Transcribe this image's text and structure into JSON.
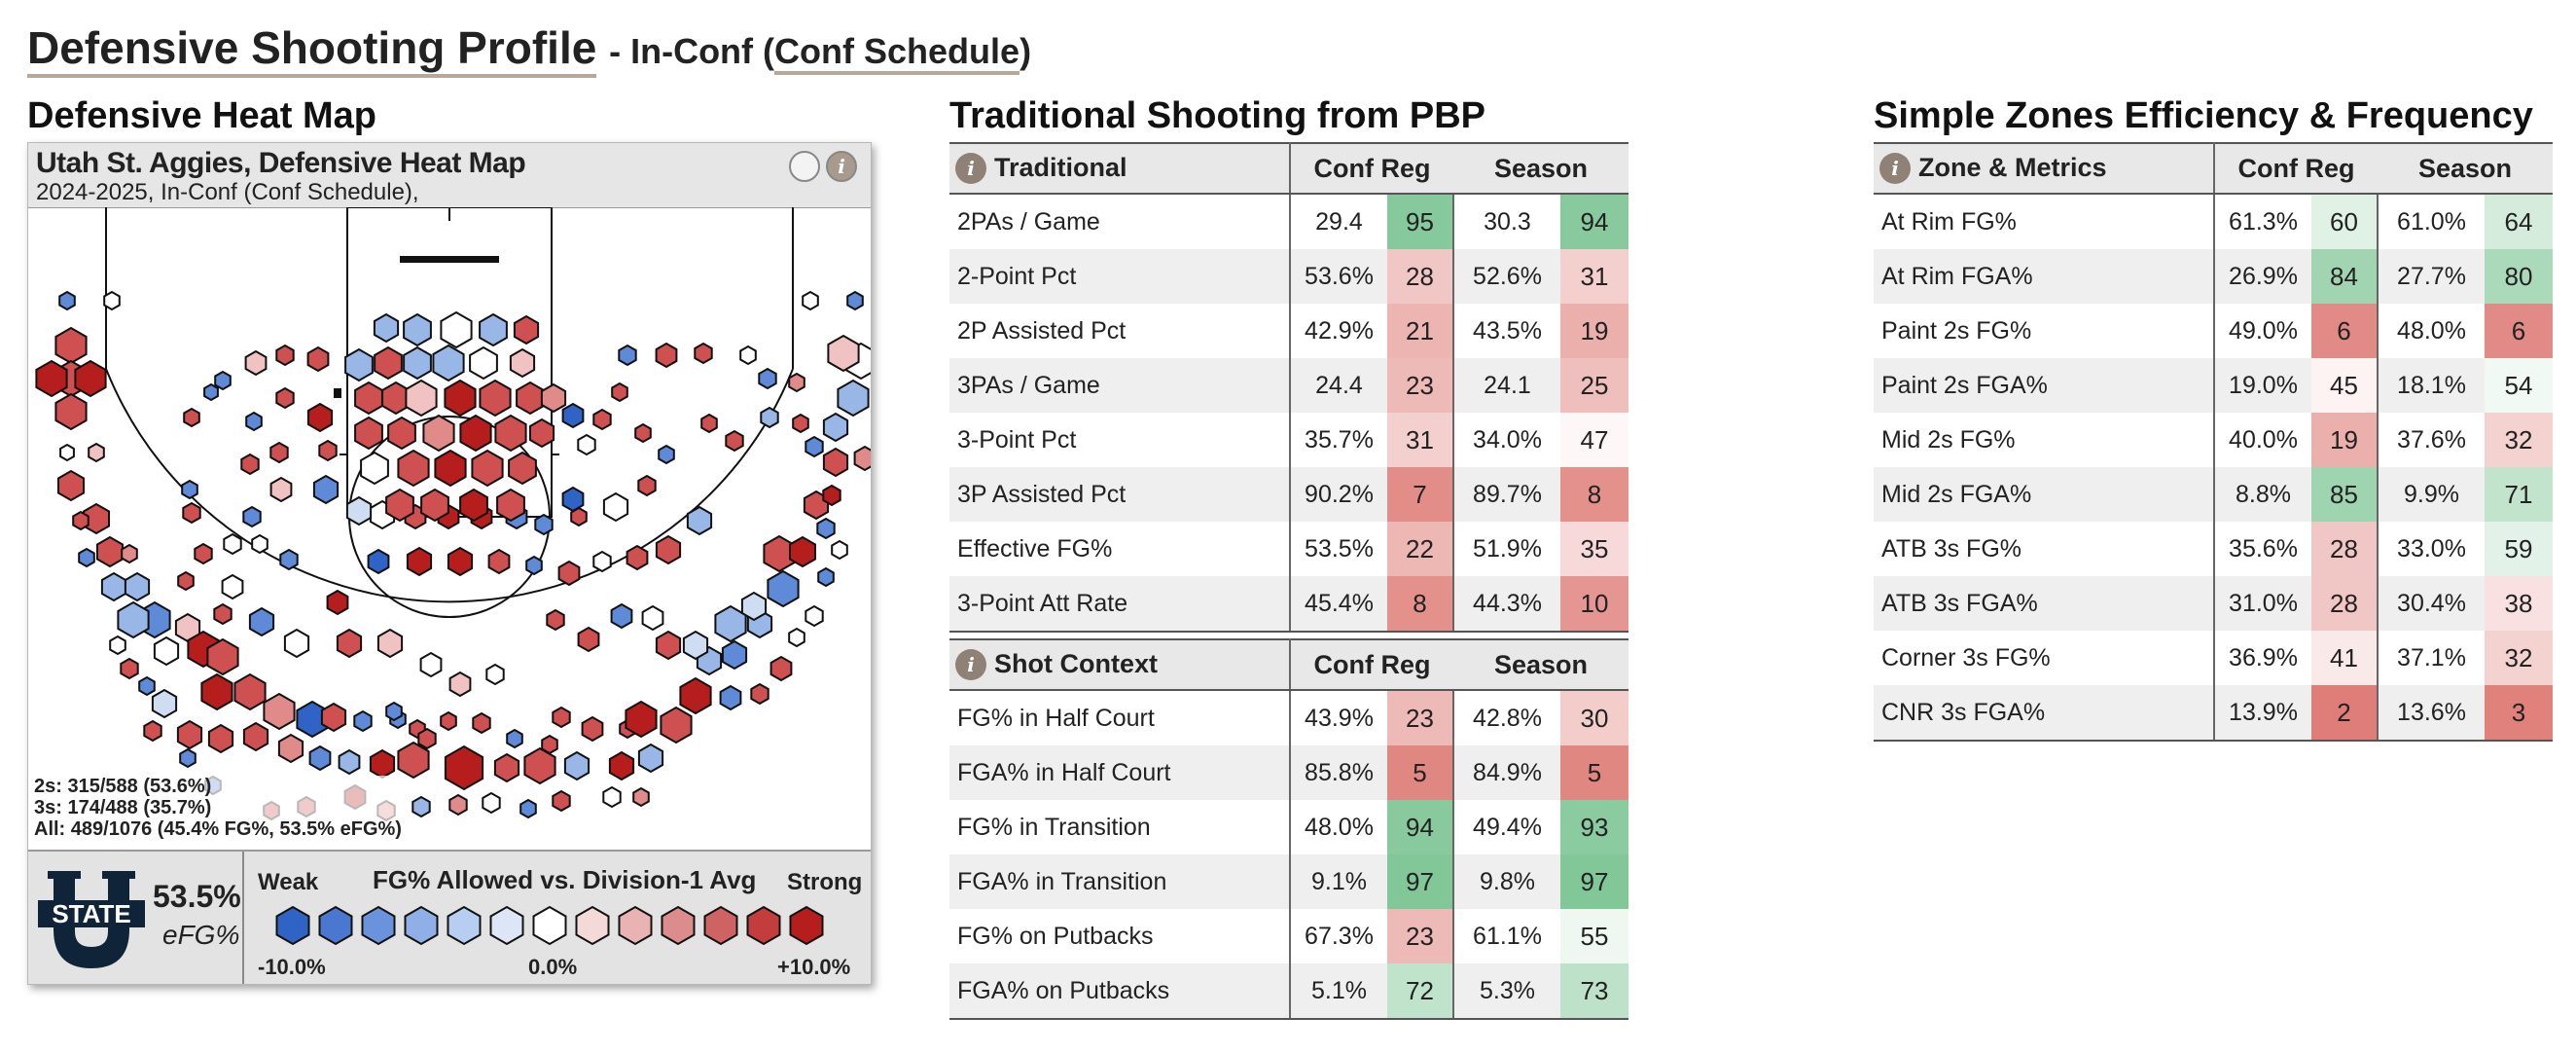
{
  "page": {
    "title": "Defensive Shooting Profile",
    "subtitle_prefix": "- In-Conf (",
    "subtitle_mid": "Conf Schedule",
    "subtitle_suffix": ")"
  },
  "heatmap": {
    "section_title": "Defensive Heat Map",
    "card_title": "Utah St. Aggies, Defensive Heat Map",
    "card_subtitle": "2024-2025, In-Conf (Conf Schedule),",
    "stats": {
      "twos": "2s: 315/588 (53.6%)",
      "threes": "3s: 174/488 (35.7%)",
      "all": "All: 489/1076 (45.4% FG%, 53.5% eFG%)"
    },
    "team_logo_text": "STATE",
    "team_logo_letter": "U",
    "efg_value": "53.5%",
    "efg_label": "eFG%",
    "legend_title": "FG% Allowed vs. Division-1 Avg",
    "legend_weak": "Weak",
    "legend_strong": "Strong",
    "legend_min": "-10.0%",
    "legend_mid": "0.0%",
    "legend_max": "+10.0%",
    "legend_colors": [
      "#2f64c6",
      "#4a78d0",
      "#6b92dc",
      "#8fb0e6",
      "#b7cdf1",
      "#dce6f7",
      "#ffffff",
      "#f4d9d9",
      "#eab3b3",
      "#dc8c8c",
      "#cf6262",
      "#c43d3d",
      "#b61e1e"
    ],
    "colors": {
      "strong_red": "#b61e1e",
      "strong_blue": "#2f64c6",
      "header_bg": "#e6e6e6"
    }
  },
  "traditional": {
    "section_title": "Traditional Shooting from PBP",
    "columns": [
      "Traditional",
      "Conf Reg",
      "Season"
    ],
    "rows": [
      {
        "label": "2PAs / Game",
        "cv": "29.4",
        "cr": 95,
        "sv": "30.3",
        "sr": 94
      },
      {
        "label": "2-Point Pct",
        "cv": "53.6%",
        "cr": 28,
        "sv": "52.6%",
        "sr": 31
      },
      {
        "label": "2P Assisted Pct",
        "cv": "42.9%",
        "cr": 21,
        "sv": "43.5%",
        "sr": 19
      },
      {
        "label": "3PAs / Game",
        "cv": "24.4",
        "cr": 23,
        "sv": "24.1",
        "sr": 25
      },
      {
        "label": "3-Point Pct",
        "cv": "35.7%",
        "cr": 31,
        "sv": "34.0%",
        "sr": 47
      },
      {
        "label": "3P Assisted Pct",
        "cv": "90.2%",
        "cr": 7,
        "sv": "89.7%",
        "sr": 8
      },
      {
        "label": "Effective FG%",
        "cv": "53.5%",
        "cr": 22,
        "sv": "51.9%",
        "sr": 35
      },
      {
        "label": "3-Point Att Rate",
        "cv": "45.4%",
        "cr": 8,
        "sv": "44.3%",
        "sr": 10
      }
    ]
  },
  "context": {
    "columns": [
      "Shot Context",
      "Conf Reg",
      "Season"
    ],
    "rows": [
      {
        "label": "FG% in Half Court",
        "cv": "43.9%",
        "cr": 23,
        "sv": "42.8%",
        "sr": 30
      },
      {
        "label": "FGA% in Half Court",
        "cv": "85.8%",
        "cr": 5,
        "sv": "84.9%",
        "sr": 5
      },
      {
        "label": "FG% in Transition",
        "cv": "48.0%",
        "cr": 94,
        "sv": "49.4%",
        "sr": 93
      },
      {
        "label": "FGA% in Transition",
        "cv": "9.1%",
        "cr": 97,
        "sv": "9.8%",
        "sr": 97
      },
      {
        "label": "FG% on Putbacks",
        "cv": "67.3%",
        "cr": 23,
        "sv": "61.1%",
        "sr": 55
      },
      {
        "label": "FGA% on Putbacks",
        "cv": "5.1%",
        "cr": 72,
        "sv": "5.3%",
        "sr": 73
      }
    ]
  },
  "zones": {
    "section_title": "Simple Zones Efficiency & Frequency",
    "columns": [
      "Zone & Metrics",
      "Conf Reg",
      "Season"
    ],
    "rows": [
      {
        "label": "At Rim FG%",
        "cv": "61.3%",
        "cr": 60,
        "sv": "61.0%",
        "sr": 64
      },
      {
        "label": "At Rim FGA%",
        "cv": "26.9%",
        "cr": 84,
        "sv": "27.7%",
        "sr": 80
      },
      {
        "label": "Paint 2s FG%",
        "cv": "49.0%",
        "cr": 6,
        "sv": "48.0%",
        "sr": 6
      },
      {
        "label": "Paint 2s FGA%",
        "cv": "19.0%",
        "cr": 45,
        "sv": "18.1%",
        "sr": 54
      },
      {
        "label": "Mid 2s FG%",
        "cv": "40.0%",
        "cr": 19,
        "sv": "37.6%",
        "sr": 32
      },
      {
        "label": "Mid 2s FGA%",
        "cv": "8.8%",
        "cr": 85,
        "sv": "9.9%",
        "sr": 71
      },
      {
        "label": "ATB 3s FG%",
        "cv": "35.6%",
        "cr": 28,
        "sv": "33.0%",
        "sr": 59
      },
      {
        "label": "ATB 3s FGA%",
        "cv": "31.0%",
        "cr": 28,
        "sv": "30.4%",
        "sr": 38
      },
      {
        "label": "Corner 3s FG%",
        "cv": "36.9%",
        "cr": 41,
        "sv": "37.1%",
        "sr": 32
      },
      {
        "label": "CNR 3s FGA%",
        "cv": "13.9%",
        "cr": 2,
        "sv": "13.6%",
        "sr": 3
      }
    ]
  },
  "chart_data": {
    "type": "table",
    "title": "Defensive Shooting Profile - In-Conf (Conf Schedule)",
    "tables": [
      {
        "name": "Traditional Shooting from PBP",
        "columns": [
          "Conf Reg value",
          "Conf Reg rank",
          "Season value",
          "Season rank"
        ],
        "source": "traditional.rows"
      },
      {
        "name": "Shot Context",
        "columns": [
          "Conf Reg value",
          "Conf Reg rank",
          "Season value",
          "Season rank"
        ],
        "source": "context.rows"
      },
      {
        "name": "Simple Zones Efficiency & Frequency",
        "columns": [
          "Conf Reg value",
          "Conf Reg rank",
          "Season value",
          "Season rank"
        ],
        "source": "zones.rows"
      }
    ],
    "heatmap_summary": {
      "twos_made": 315,
      "twos_att": 588,
      "threes_made": 174,
      "threes_att": 488,
      "all_made": 489,
      "all_att": 1076,
      "fg_pct": 45.4,
      "efg_pct": 53.5
    },
    "color_scale": {
      "min": -10.0,
      "mid": 0.0,
      "max": 10.0,
      "unit": "%"
    }
  }
}
